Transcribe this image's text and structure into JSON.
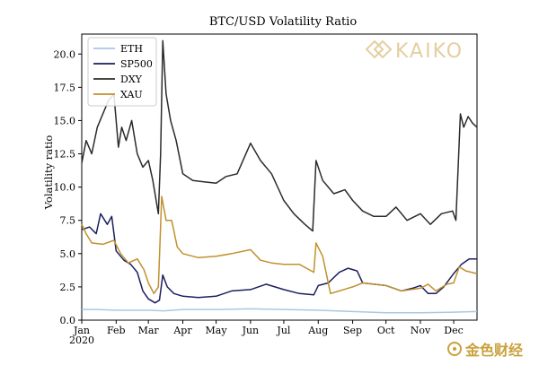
{
  "chart_data": {
    "type": "line",
    "title": "BTC/USD Volatility Ratio",
    "xlabel": "",
    "ylabel": "Volatility ratio",
    "xlim": [
      "2020-01-01",
      "2020-12-22"
    ],
    "ylim": [
      0,
      21.5
    ],
    "x_ticks": [
      {
        "date": "2020-01-01",
        "label": "Jan"
      },
      {
        "date": "2020-02-01",
        "label": "Feb"
      },
      {
        "date": "2020-03-01",
        "label": "Mar"
      },
      {
        "date": "2020-04-01",
        "label": "Apr"
      },
      {
        "date": "2020-05-01",
        "label": "May"
      },
      {
        "date": "2020-06-01",
        "label": "Jun"
      },
      {
        "date": "2020-07-01",
        "label": "Jul"
      },
      {
        "date": "2020-08-01",
        "label": "Aug"
      },
      {
        "date": "2020-09-01",
        "label": "Sep"
      },
      {
        "date": "2020-10-01",
        "label": "Oct"
      },
      {
        "date": "2020-11-01",
        "label": "Nov"
      },
      {
        "date": "2020-12-01",
        "label": "Dec"
      }
    ],
    "x_year_label": "2020",
    "y_ticks": [
      0.0,
      2.5,
      5.0,
      7.5,
      10.0,
      12.5,
      15.0,
      17.5,
      20.0
    ],
    "y_tick_labels": [
      "0.0",
      "2.5",
      "5.0",
      "7.5",
      "10.0",
      "12.5",
      "15.0",
      "17.5",
      "20.0"
    ],
    "grid": false,
    "legend_position": "top-left",
    "series": [
      {
        "name": "ETH",
        "color": "#a9c8e0",
        "points": [
          [
            "2020-01-01",
            0.8
          ],
          [
            "2020-01-15",
            0.8
          ],
          [
            "2020-02-01",
            0.75
          ],
          [
            "2020-03-01",
            0.75
          ],
          [
            "2020-03-15",
            0.7
          ],
          [
            "2020-04-01",
            0.8
          ],
          [
            "2020-05-01",
            0.8
          ],
          [
            "2020-06-01",
            0.85
          ],
          [
            "2020-07-01",
            0.8
          ],
          [
            "2020-08-01",
            0.75
          ],
          [
            "2020-09-01",
            0.65
          ],
          [
            "2020-10-01",
            0.55
          ],
          [
            "2020-11-01",
            0.55
          ],
          [
            "2020-12-01",
            0.6
          ],
          [
            "2020-12-22",
            0.65
          ]
        ]
      },
      {
        "name": "SP500",
        "color": "#1b1f5e",
        "points": [
          [
            "2020-01-01",
            6.8
          ],
          [
            "2020-01-08",
            7.0
          ],
          [
            "2020-01-14",
            6.5
          ],
          [
            "2020-01-18",
            8.0
          ],
          [
            "2020-01-24",
            7.2
          ],
          [
            "2020-01-28",
            7.8
          ],
          [
            "2020-02-01",
            5.2
          ],
          [
            "2020-02-08",
            4.5
          ],
          [
            "2020-02-14",
            4.2
          ],
          [
            "2020-02-20",
            3.6
          ],
          [
            "2020-02-25",
            2.2
          ],
          [
            "2020-03-01",
            1.6
          ],
          [
            "2020-03-07",
            1.3
          ],
          [
            "2020-03-11",
            1.5
          ],
          [
            "2020-03-14",
            3.4
          ],
          [
            "2020-03-18",
            2.5
          ],
          [
            "2020-03-24",
            2.0
          ],
          [
            "2020-04-01",
            1.8
          ],
          [
            "2020-04-15",
            1.7
          ],
          [
            "2020-05-01",
            1.8
          ],
          [
            "2020-05-15",
            2.2
          ],
          [
            "2020-06-01",
            2.3
          ],
          [
            "2020-06-15",
            2.7
          ],
          [
            "2020-07-01",
            2.3
          ],
          [
            "2020-07-15",
            2.0
          ],
          [
            "2020-07-28",
            1.9
          ],
          [
            "2020-08-01",
            2.6
          ],
          [
            "2020-08-10",
            2.8
          ],
          [
            "2020-08-20",
            3.6
          ],
          [
            "2020-08-28",
            3.9
          ],
          [
            "2020-09-05",
            3.7
          ],
          [
            "2020-09-10",
            2.8
          ],
          [
            "2020-09-20",
            2.7
          ],
          [
            "2020-10-01",
            2.6
          ],
          [
            "2020-10-15",
            2.2
          ],
          [
            "2020-10-25",
            2.4
          ],
          [
            "2020-11-01",
            2.6
          ],
          [
            "2020-11-08",
            2.0
          ],
          [
            "2020-11-15",
            2.0
          ],
          [
            "2020-11-22",
            2.5
          ],
          [
            "2020-12-01",
            3.5
          ],
          [
            "2020-12-08",
            4.2
          ],
          [
            "2020-12-15",
            4.6
          ],
          [
            "2020-12-22",
            4.6
          ]
        ]
      },
      {
        "name": "DXY",
        "color": "#2b2b2b",
        "points": [
          [
            "2020-01-01",
            11.8
          ],
          [
            "2020-01-05",
            13.5
          ],
          [
            "2020-01-10",
            12.5
          ],
          [
            "2020-01-15",
            14.5
          ],
          [
            "2020-01-20",
            15.5
          ],
          [
            "2020-01-25",
            16.5
          ],
          [
            "2020-01-30",
            17.0
          ],
          [
            "2020-02-03",
            13.0
          ],
          [
            "2020-02-06",
            14.5
          ],
          [
            "2020-02-10",
            13.5
          ],
          [
            "2020-02-15",
            15.0
          ],
          [
            "2020-02-20",
            12.5
          ],
          [
            "2020-02-25",
            11.5
          ],
          [
            "2020-03-01",
            12.0
          ],
          [
            "2020-03-05",
            10.5
          ],
          [
            "2020-03-10",
            8.0
          ],
          [
            "2020-03-12",
            12.5
          ],
          [
            "2020-03-14",
            21.0
          ],
          [
            "2020-03-17",
            17.0
          ],
          [
            "2020-03-21",
            15.0
          ],
          [
            "2020-03-26",
            13.5
          ],
          [
            "2020-04-01",
            11.0
          ],
          [
            "2020-04-10",
            10.5
          ],
          [
            "2020-04-20",
            10.4
          ],
          [
            "2020-05-01",
            10.3
          ],
          [
            "2020-05-10",
            10.8
          ],
          [
            "2020-05-20",
            11.0
          ],
          [
            "2020-06-01",
            13.3
          ],
          [
            "2020-06-10",
            12.0
          ],
          [
            "2020-06-20",
            11.0
          ],
          [
            "2020-07-01",
            9.0
          ],
          [
            "2020-07-10",
            8.0
          ],
          [
            "2020-07-20",
            7.2
          ],
          [
            "2020-07-27",
            6.7
          ],
          [
            "2020-07-30",
            12.0
          ],
          [
            "2020-08-05",
            10.5
          ],
          [
            "2020-08-15",
            9.5
          ],
          [
            "2020-08-25",
            9.8
          ],
          [
            "2020-09-01",
            9.0
          ],
          [
            "2020-09-10",
            8.2
          ],
          [
            "2020-09-20",
            7.8
          ],
          [
            "2020-10-01",
            7.8
          ],
          [
            "2020-10-10",
            8.5
          ],
          [
            "2020-10-20",
            7.5
          ],
          [
            "2020-11-01",
            8.0
          ],
          [
            "2020-11-10",
            7.2
          ],
          [
            "2020-11-20",
            8.0
          ],
          [
            "2020-11-30",
            8.2
          ],
          [
            "2020-12-03",
            7.5
          ],
          [
            "2020-12-07",
            15.5
          ],
          [
            "2020-12-10",
            14.5
          ],
          [
            "2020-12-14",
            15.3
          ],
          [
            "2020-12-18",
            14.8
          ],
          [
            "2020-12-22",
            14.5
          ]
        ]
      },
      {
        "name": "XAU",
        "color": "#c0912d",
        "points": [
          [
            "2020-01-01",
            7.2
          ],
          [
            "2020-01-05",
            6.5
          ],
          [
            "2020-01-10",
            5.8
          ],
          [
            "2020-01-20",
            5.7
          ],
          [
            "2020-01-30",
            6.0
          ],
          [
            "2020-02-05",
            5.0
          ],
          [
            "2020-02-12",
            4.3
          ],
          [
            "2020-02-20",
            4.6
          ],
          [
            "2020-02-26",
            3.8
          ],
          [
            "2020-03-01",
            2.8
          ],
          [
            "2020-03-06",
            2.0
          ],
          [
            "2020-03-10",
            2.5
          ],
          [
            "2020-03-13",
            9.3
          ],
          [
            "2020-03-17",
            7.5
          ],
          [
            "2020-03-22",
            7.5
          ],
          [
            "2020-03-27",
            5.5
          ],
          [
            "2020-04-01",
            5.0
          ],
          [
            "2020-04-15",
            4.7
          ],
          [
            "2020-05-01",
            4.8
          ],
          [
            "2020-05-15",
            5.0
          ],
          [
            "2020-06-01",
            5.3
          ],
          [
            "2020-06-10",
            4.5
          ],
          [
            "2020-06-20",
            4.3
          ],
          [
            "2020-07-01",
            4.2
          ],
          [
            "2020-07-15",
            4.2
          ],
          [
            "2020-07-28",
            3.6
          ],
          [
            "2020-07-30",
            5.8
          ],
          [
            "2020-08-05",
            4.8
          ],
          [
            "2020-08-12",
            2.0
          ],
          [
            "2020-08-20",
            2.2
          ],
          [
            "2020-09-01",
            2.5
          ],
          [
            "2020-09-10",
            2.8
          ],
          [
            "2020-10-01",
            2.6
          ],
          [
            "2020-10-15",
            2.2
          ],
          [
            "2020-11-01",
            2.4
          ],
          [
            "2020-11-08",
            2.7
          ],
          [
            "2020-11-15",
            2.2
          ],
          [
            "2020-11-25",
            2.7
          ],
          [
            "2020-12-01",
            2.8
          ],
          [
            "2020-12-06",
            4.0
          ],
          [
            "2020-12-12",
            3.7
          ],
          [
            "2020-12-22",
            3.5
          ]
        ]
      }
    ]
  },
  "watermark": {
    "brand": "KAIKO",
    "corner_mark": "金色财经"
  }
}
